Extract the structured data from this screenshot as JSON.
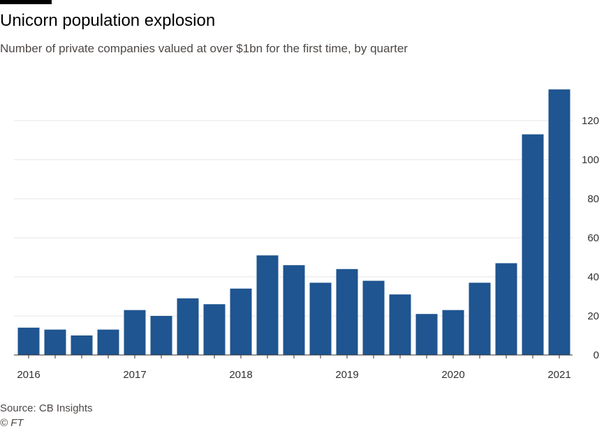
{
  "header": {
    "title": "Unicorn population explosion",
    "subtitle": "Number of private companies valued at over $1bn for the first time, by quarter"
  },
  "footer": {
    "source": "Source: CB Insights",
    "credit": "© FT"
  },
  "colors": {
    "bar": "#1f5590",
    "grid": "#e6e6e6",
    "axis": "#33302e"
  },
  "chart_data": {
    "type": "bar",
    "title": "Unicorn population explosion",
    "subtitle": "Number of private companies valued at over $1bn for the first time, by quarter",
    "xlabel": "",
    "ylabel": "",
    "ylim": [
      0,
      135
    ],
    "y_ticks": [
      0,
      20,
      40,
      60,
      80,
      100,
      120
    ],
    "y_axis_side": "right",
    "grid": true,
    "categories": [
      "2016 Q1",
      "2016 Q2",
      "2016 Q3",
      "2016 Q4",
      "2017 Q1",
      "2017 Q2",
      "2017 Q3",
      "2017 Q4",
      "2018 Q1",
      "2018 Q2",
      "2018 Q3",
      "2018 Q4",
      "2019 Q1",
      "2019 Q2",
      "2019 Q3",
      "2019 Q4",
      "2020 Q1",
      "2020 Q2",
      "2020 Q3",
      "2020 Q4",
      "2021 Q1"
    ],
    "values": [
      14,
      13,
      10,
      13,
      23,
      20,
      29,
      26,
      34,
      51,
      46,
      37,
      44,
      38,
      31,
      21,
      23,
      37,
      47,
      113,
      136
    ],
    "x_tick_labels": [
      {
        "label": "2016",
        "index": 0
      },
      {
        "label": "2017",
        "index": 4
      },
      {
        "label": "2018",
        "index": 8
      },
      {
        "label": "2019",
        "index": 12
      },
      {
        "label": "2020",
        "index": 16
      },
      {
        "label": "2021",
        "index": 20
      }
    ]
  }
}
